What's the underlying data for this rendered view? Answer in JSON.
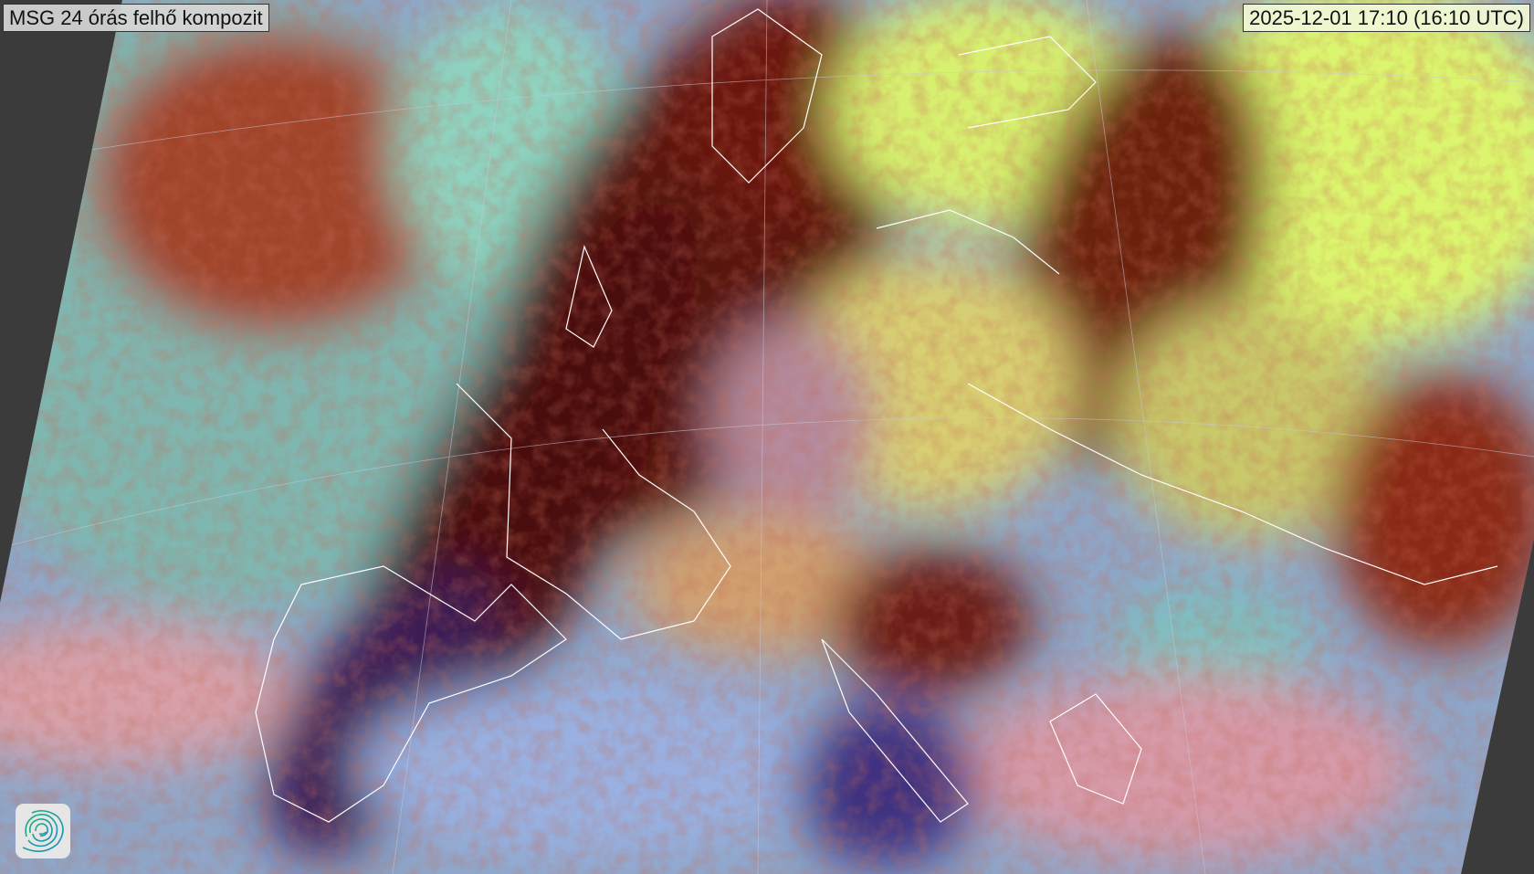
{
  "title": "MSG 24 órás felhő kompozit",
  "timestamp": "2025-12-01 17:10 (16:10 UTC)",
  "logo": {
    "icon": "swirl-logo-icon",
    "colors": [
      "#1fb07a",
      "#1a8fc0"
    ]
  },
  "colors": {
    "background": "#3b3b3b",
    "coastlines": "#ffffff"
  }
}
